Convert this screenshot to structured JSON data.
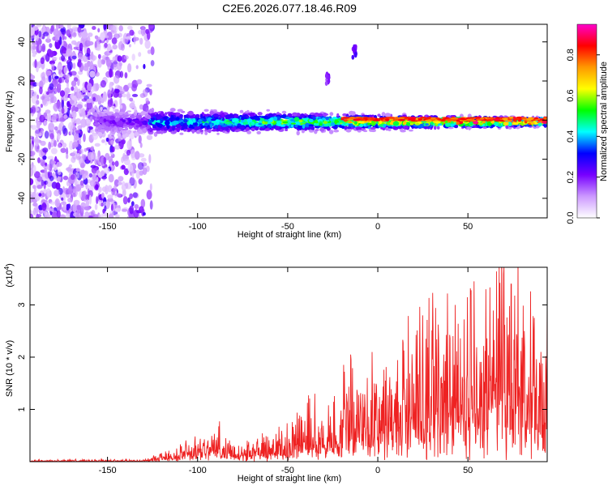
{
  "page": {
    "title": "C2E6.2026.077.18.46.R09"
  },
  "chart_data": [
    {
      "id": "spectrogram",
      "type": "heatmap",
      "xlabel": "Height of straight line (km)",
      "ylabel": "Frequency (Hz)",
      "xlim": [
        -193,
        94
      ],
      "ylim": [
        -50,
        49
      ],
      "xticks": [
        -150,
        -100,
        -50,
        0,
        50
      ],
      "xtick_labels": [
        "-150",
        "-100",
        "-50",
        "0",
        "50"
      ],
      "yticks": [
        -40,
        -20,
        0,
        20,
        40
      ],
      "ytick_labels": [
        "-40",
        "-20",
        "0",
        "20",
        "40"
      ],
      "features": [
        {
          "name": "noise-region",
          "x_range": [
            -193,
            -125
          ],
          "y_range": [
            -50,
            49
          ],
          "level": 0.15
        },
        {
          "name": "signal-band",
          "x_range": [
            -157,
            94
          ],
          "center_y": 0,
          "level_start": 0.25,
          "level_end": 0.9
        },
        {
          "name": "spike",
          "x": -28,
          "y": 21,
          "level": 0.15
        },
        {
          "name": "blob",
          "x": -13,
          "y": 35,
          "level": 0.2
        }
      ]
    },
    {
      "id": "colorbar",
      "type": "colorbar",
      "label": "Normalized spectral amplitude",
      "range": [
        0,
        0.95
      ],
      "ticks": [
        0.0,
        0.2,
        0.4,
        0.6,
        0.8
      ],
      "tick_labels": [
        "0.0",
        "0.2",
        "0.4",
        "0.6",
        "0.8"
      ],
      "colors": [
        "#ffffff",
        "#cc99ff",
        "#7700ff",
        "#0000ff",
        "#00ffff",
        "#00ff00",
        "#ffff00",
        "#ff9900",
        "#ff0000",
        "#ff00cc"
      ]
    },
    {
      "id": "snr",
      "type": "line",
      "xlabel": "Height of straight line (km)",
      "ylabel": "SNR (10 * v/v)",
      "y_multiplier": "(x10",
      "y_multiplier_exp": "4",
      "y_multiplier_close": ")",
      "xlim": [
        -193,
        94
      ],
      "ylim": [
        0,
        3.72
      ],
      "xticks": [
        -150,
        -100,
        -50,
        0,
        50
      ],
      "xtick_labels": [
        "-150",
        "-100",
        "-50",
        "0",
        "50"
      ],
      "yticks": [
        1,
        2,
        3
      ],
      "ytick_labels": [
        "1",
        "2",
        "3"
      ],
      "series": [
        {
          "name": "SNR",
          "color": "#ee2222",
          "envelope": [
            [
              -193,
              0.02
            ],
            [
              -130,
              0.03
            ],
            [
              -115,
              0.12
            ],
            [
              -100,
              0.35
            ],
            [
              -90,
              0.45
            ],
            [
              -80,
              0.3
            ],
            [
              -70,
              0.25
            ],
            [
              -60,
              0.35
            ],
            [
              -50,
              0.45
            ],
            [
              -40,
              0.7
            ],
            [
              -30,
              0.6
            ],
            [
              -20,
              1.0
            ],
            [
              -10,
              1.1
            ],
            [
              0,
              1.2
            ],
            [
              10,
              1.4
            ],
            [
              20,
              1.5
            ],
            [
              30,
              1.7
            ],
            [
              40,
              1.9
            ],
            [
              50,
              1.8
            ],
            [
              60,
              2.0
            ],
            [
              70,
              2.5
            ],
            [
              80,
              2.0
            ],
            [
              94,
              1.8
            ]
          ],
          "peaks": [
            [
              70,
              3.72
            ],
            [
              74,
              3.4
            ],
            [
              60,
              3.3
            ],
            [
              43,
              3.0
            ],
            [
              25,
              2.8
            ],
            [
              -15,
              2.05
            ],
            [
              -35,
              1.3
            ]
          ]
        }
      ]
    }
  ]
}
